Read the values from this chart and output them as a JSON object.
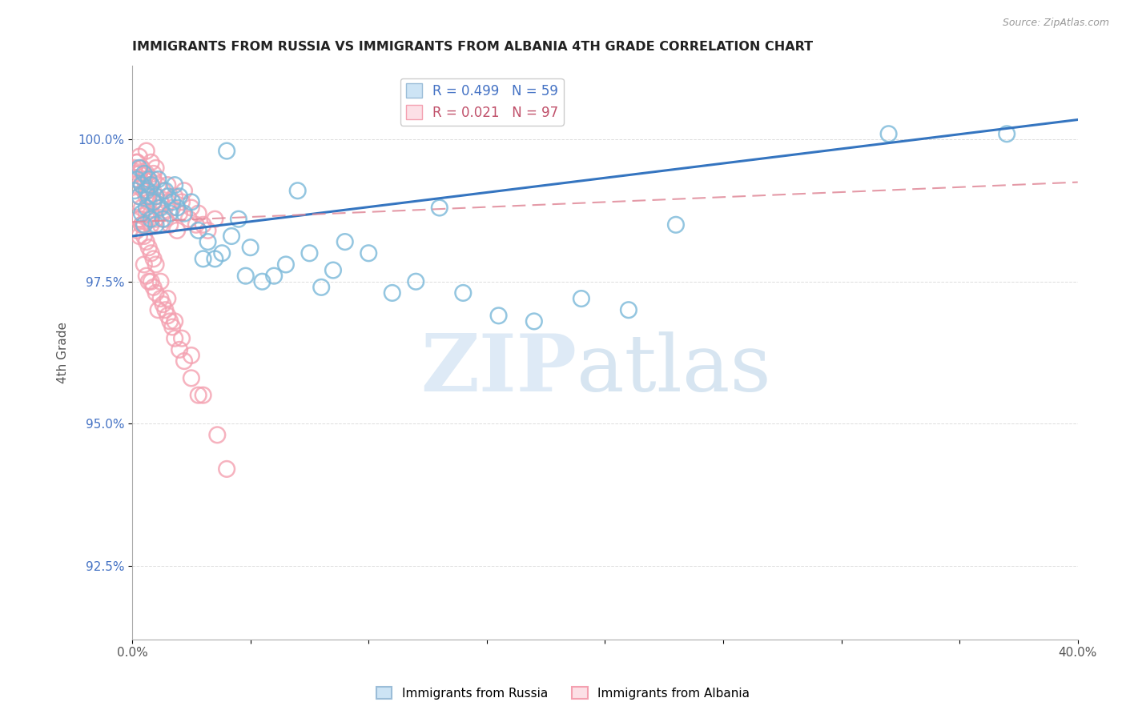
{
  "title": "IMMIGRANTS FROM RUSSIA VS IMMIGRANTS FROM ALBANIA 4TH GRADE CORRELATION CHART",
  "source": "Source: ZipAtlas.com",
  "ylabel": "4th Grade",
  "x_min": 0.0,
  "x_max": 0.4,
  "y_min": 91.2,
  "y_max": 101.3,
  "y_ticks": [
    92.5,
    95.0,
    97.5,
    100.0
  ],
  "y_tick_labels": [
    "92.5%",
    "95.0%",
    "97.5%",
    "100.0%"
  ],
  "russia_R": 0.499,
  "russia_N": 59,
  "albania_R": 0.021,
  "albania_N": 97,
  "russia_color": "#7ab8d9",
  "albania_color": "#f4a0b0",
  "russia_line_color": "#3575c0",
  "albania_line_color": "#e08898",
  "russia_line_y0": 98.3,
  "russia_line_y1": 100.35,
  "albania_line_y0": 98.55,
  "albania_line_y1": 99.25,
  "russia_x": [
    0.001,
    0.002,
    0.003,
    0.003,
    0.004,
    0.004,
    0.005,
    0.005,
    0.006,
    0.006,
    0.007,
    0.007,
    0.008,
    0.008,
    0.009,
    0.01,
    0.01,
    0.011,
    0.012,
    0.013,
    0.014,
    0.015,
    0.016,
    0.017,
    0.018,
    0.019,
    0.02,
    0.022,
    0.025,
    0.028,
    0.03,
    0.032,
    0.035,
    0.038,
    0.04,
    0.042,
    0.045,
    0.048,
    0.05,
    0.055,
    0.06,
    0.065,
    0.07,
    0.075,
    0.08,
    0.085,
    0.09,
    0.1,
    0.11,
    0.12,
    0.13,
    0.14,
    0.155,
    0.17,
    0.19,
    0.21,
    0.23,
    0.32,
    0.37
  ],
  "russia_y": [
    99.1,
    99.3,
    99.0,
    99.5,
    98.7,
    99.2,
    98.5,
    99.4,
    98.8,
    99.1,
    99.0,
    99.3,
    98.6,
    99.2,
    98.9,
    98.5,
    99.0,
    99.3,
    98.8,
    98.6,
    99.1,
    99.0,
    98.7,
    98.9,
    99.2,
    98.8,
    99.0,
    98.7,
    98.9,
    98.4,
    97.9,
    98.2,
    97.9,
    98.0,
    99.8,
    98.3,
    98.6,
    97.6,
    98.1,
    97.5,
    97.6,
    97.8,
    99.1,
    98.0,
    97.4,
    97.7,
    98.2,
    98.0,
    97.3,
    97.5,
    98.8,
    97.3,
    96.9,
    96.8,
    97.2,
    97.0,
    98.5,
    100.1,
    100.1
  ],
  "albania_x": [
    0.001,
    0.001,
    0.002,
    0.002,
    0.002,
    0.003,
    0.003,
    0.003,
    0.004,
    0.004,
    0.004,
    0.005,
    0.005,
    0.005,
    0.006,
    0.006,
    0.006,
    0.007,
    0.007,
    0.007,
    0.008,
    0.008,
    0.008,
    0.009,
    0.009,
    0.01,
    0.01,
    0.011,
    0.011,
    0.012,
    0.012,
    0.013,
    0.013,
    0.014,
    0.015,
    0.015,
    0.016,
    0.017,
    0.018,
    0.019,
    0.02,
    0.021,
    0.022,
    0.024,
    0.025,
    0.027,
    0.028,
    0.03,
    0.032,
    0.035,
    0.003,
    0.004,
    0.005,
    0.006,
    0.007,
    0.008,
    0.009,
    0.01,
    0.011,
    0.012,
    0.013,
    0.014,
    0.015,
    0.016,
    0.017,
    0.018,
    0.02,
    0.022,
    0.025,
    0.028,
    0.001,
    0.002,
    0.003,
    0.004,
    0.005,
    0.006,
    0.007,
    0.008,
    0.009,
    0.01,
    0.002,
    0.003,
    0.004,
    0.005,
    0.006,
    0.007,
    0.008,
    0.009,
    0.01,
    0.012,
    0.015,
    0.018,
    0.021,
    0.025,
    0.03,
    0.036,
    0.04
  ],
  "albania_y": [
    99.2,
    99.5,
    98.9,
    99.3,
    99.6,
    98.6,
    99.0,
    99.4,
    98.8,
    99.2,
    99.5,
    98.5,
    99.1,
    99.3,
    98.7,
    99.0,
    99.4,
    98.6,
    99.1,
    98.9,
    98.7,
    99.2,
    98.5,
    98.9,
    99.3,
    98.6,
    99.0,
    98.8,
    99.2,
    98.5,
    98.9,
    98.7,
    99.1,
    98.6,
    98.9,
    99.2,
    98.5,
    98.8,
    99.0,
    98.4,
    98.7,
    98.9,
    99.1,
    98.6,
    98.8,
    98.5,
    98.7,
    98.5,
    98.4,
    98.6,
    98.3,
    98.5,
    97.8,
    97.6,
    97.5,
    97.5,
    97.4,
    97.3,
    97.0,
    97.2,
    97.1,
    97.0,
    96.9,
    96.8,
    96.7,
    96.5,
    96.3,
    96.1,
    95.8,
    95.5,
    99.4,
    99.6,
    99.7,
    99.5,
    99.3,
    99.8,
    99.2,
    99.6,
    99.4,
    99.5,
    98.4,
    98.6,
    98.5,
    98.3,
    98.2,
    98.1,
    98.0,
    97.9,
    97.8,
    97.5,
    97.2,
    96.8,
    96.5,
    96.2,
    95.5,
    94.8,
    94.2
  ]
}
